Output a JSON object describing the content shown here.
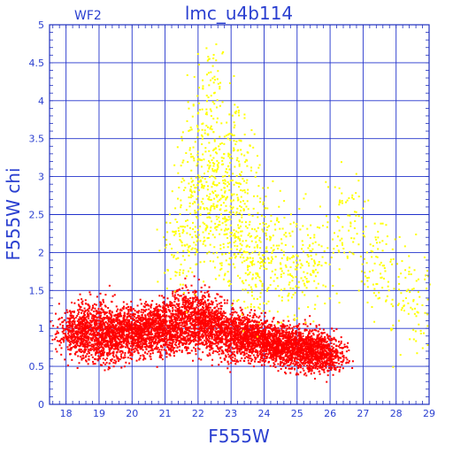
{
  "chart_data": {
    "type": "scatter",
    "title": "lmc_u4b114",
    "panel_label": "WF2",
    "xlabel": "F555W",
    "ylabel": "F555W  chi",
    "xlim": [
      17.5,
      29
    ],
    "ylim": [
      0,
      5
    ],
    "x_ticks": [
      "18",
      "19",
      "20",
      "21",
      "22",
      "23",
      "24",
      "25",
      "26",
      "27",
      "28",
      "29"
    ],
    "y_ticks": [
      "0",
      "0.5",
      "1",
      "1.5",
      "2",
      "2.5",
      "3",
      "3.5",
      "4",
      "4.5",
      "5"
    ],
    "grid": true,
    "colors": {
      "axis": "#1f2fbf",
      "grid": "#2233cc",
      "text": "#2a3fd0",
      "series_red": "#ff0000",
      "series_yellow": "#ffff00"
    },
    "series": [
      {
        "color": "#ff0000",
        "description_points": [
          [
            18.2,
            0.95
          ],
          [
            18.4,
            1.05
          ],
          [
            18.6,
            0.8
          ],
          [
            18.8,
            1.2
          ],
          [
            19.0,
            0.9
          ],
          [
            19.2,
            1.0
          ],
          [
            19.4,
            0.75
          ],
          [
            19.6,
            1.1
          ],
          [
            19.8,
            0.95
          ],
          [
            20.0,
            1.0
          ],
          [
            20.2,
            0.85
          ],
          [
            20.4,
            1.15
          ],
          [
            20.6,
            0.9
          ],
          [
            20.8,
            1.05
          ],
          [
            21.0,
            0.95
          ],
          [
            21.2,
            1.2
          ],
          [
            21.4,
            0.85
          ],
          [
            21.6,
            1.0
          ],
          [
            21.8,
            1.3
          ],
          [
            22.0,
            1.1
          ],
          [
            22.2,
            0.95
          ],
          [
            22.4,
            1.2
          ],
          [
            22.6,
            0.9
          ],
          [
            22.8,
            1.05
          ],
          [
            23.0,
            0.85
          ],
          [
            23.2,
            1.0
          ],
          [
            23.4,
            0.8
          ],
          [
            23.6,
            0.95
          ],
          [
            23.8,
            0.85
          ],
          [
            24.0,
            0.9
          ],
          [
            24.2,
            0.8
          ],
          [
            24.4,
            0.75
          ],
          [
            24.6,
            0.85
          ],
          [
            24.8,
            0.8
          ],
          [
            25.0,
            0.7
          ],
          [
            25.2,
            0.8
          ],
          [
            25.4,
            0.75
          ],
          [
            25.6,
            0.7
          ],
          [
            25.8,
            0.65
          ],
          [
            26.0,
            0.7
          ]
        ]
      },
      {
        "color": "#ffff00",
        "description_points": [
          [
            21.5,
            2.0
          ],
          [
            21.8,
            2.5
          ],
          [
            22.0,
            3.0
          ],
          [
            22.2,
            3.5
          ],
          [
            22.4,
            4.0
          ],
          [
            22.6,
            2.8
          ],
          [
            22.8,
            2.2
          ],
          [
            23.0,
            2.6
          ],
          [
            23.2,
            3.2
          ],
          [
            23.4,
            2.0
          ],
          [
            23.6,
            1.8
          ],
          [
            24.0,
            2.2
          ],
          [
            24.4,
            1.9
          ],
          [
            25.0,
            1.7
          ],
          [
            25.5,
            1.9
          ],
          [
            26.5,
            2.4
          ],
          [
            27.5,
            1.8
          ],
          [
            28.5,
            1.4
          ]
        ]
      }
    ]
  }
}
